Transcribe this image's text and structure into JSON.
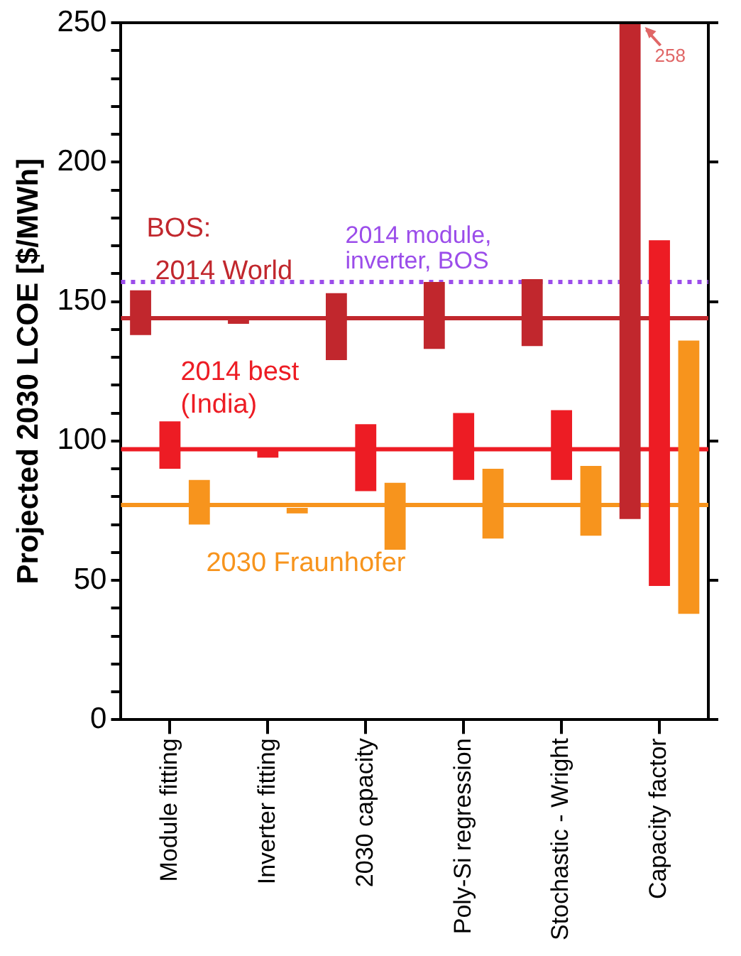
{
  "chart_data": {
    "type": "bar",
    "ylabel": "Projected 2030 LCOE [$/MWh]",
    "categories": [
      "Module fitting",
      "Inverter fitting",
      "2030 capacity",
      "Poly-Si regression",
      "Stochastic - Wright",
      "Capacity factor"
    ],
    "series": [
      {
        "name": "2014 World",
        "color": "#c1272d",
        "base": [
          138,
          142,
          129,
          133,
          134,
          72
        ],
        "values": [
          16,
          2,
          24,
          24,
          24,
          178
        ]
      },
      {
        "name": "2014 best (India)",
        "color": "#ed1c24",
        "base": [
          90,
          94,
          82,
          86,
          86,
          48
        ],
        "values": [
          17,
          3,
          24,
          24,
          25,
          124
        ]
      },
      {
        "name": "2030 Fraunhofer",
        "color": "#f7941d",
        "base": [
          70,
          74,
          61,
          65,
          66,
          38
        ],
        "values": [
          16,
          2,
          24,
          25,
          25,
          98
        ]
      }
    ],
    "ylim": [
      0,
      250
    ],
    "yticks": [
      0,
      {
        "value": 10,
        "label": null
      },
      {
        "value": 20,
        "label": null
      },
      {
        "value": 30,
        "label": null
      },
      {
        "value": 40,
        "label": null
      },
      50,
      {
        "value": 60,
        "label": null
      },
      {
        "value": 70,
        "label": null
      },
      {
        "value": 80,
        "label": null
      },
      {
        "value": 90,
        "label": null
      },
      100,
      {
        "value": 110,
        "label": null
      },
      {
        "value": 120,
        "label": null
      },
      {
        "value": 130,
        "label": null
      },
      {
        "value": 140,
        "label": null
      },
      150,
      {
        "value": 160,
        "label": null
      },
      {
        "value": 170,
        "label": null
      },
      {
        "value": 180,
        "label": null
      },
      {
        "value": 190,
        "label": null
      },
      200,
      {
        "value": 210,
        "label": null
      },
      {
        "value": 220,
        "label": null
      },
      {
        "value": 230,
        "label": null
      },
      {
        "value": 240,
        "label": null
      },
      250
    ],
    "ref_lines": [
      {
        "axis": "y",
        "value": 144,
        "color": "#c1272d"
      },
      {
        "axis": "y",
        "value": 97,
        "color": "#ed1c24"
      },
      {
        "axis": "y",
        "value": 77,
        "color": "#f7941d"
      },
      {
        "axis": "y",
        "value": 157,
        "color": "#9b4dea",
        "line_style": "dotted",
        "label": "2014 module, inverter, BOS"
      }
    ],
    "annotations": [
      "BOS:",
      "258"
    ],
    "grid": false,
    "legend": false
  }
}
